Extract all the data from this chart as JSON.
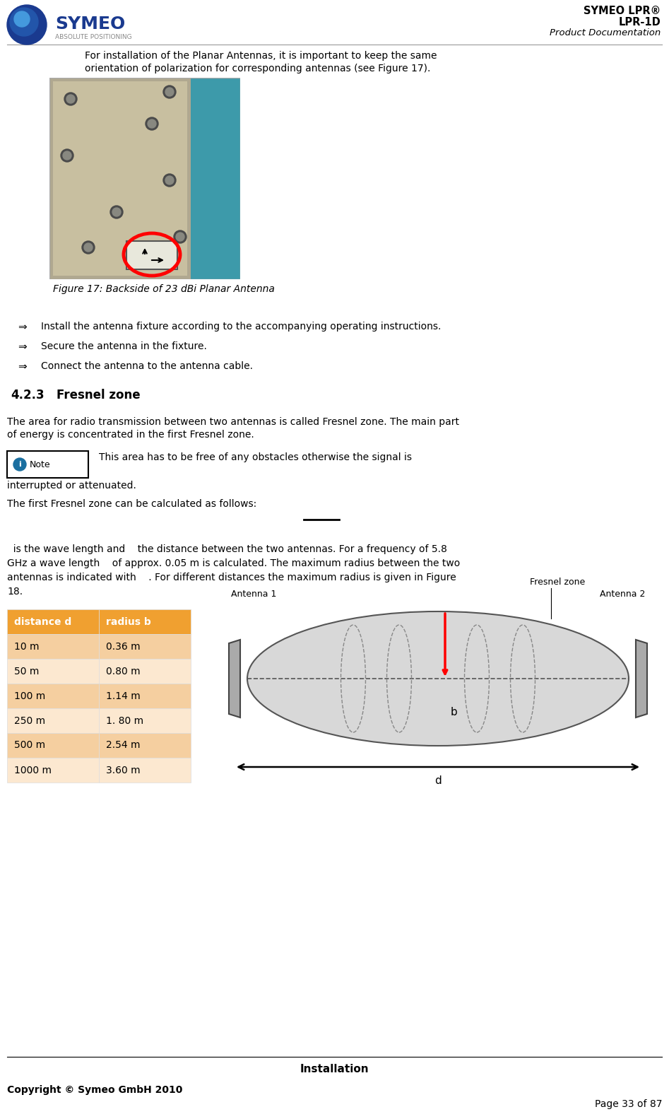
{
  "title_line1": "SYMEO LPR®",
  "title_line2": "LPR-1D",
  "title_line3": "Product Documentation",
  "intro_text_line1": "For installation of the Planar Antennas, it is important to keep the same",
  "intro_text_line2": "orientation of polarization for corresponding antennas (see Figure 17).",
  "figure_caption": "Figure 17: Backside of 23 dBi Planar Antenna",
  "bullet_symbol": "⇒",
  "bullets": [
    "Install the antenna fixture according to the accompanying operating instructions.",
    "Secure the antenna in the fixture.",
    "Connect the antenna to the antenna cable."
  ],
  "section_num": "4.2.3",
  "section_title": "Fresnel zone",
  "para1_line1": "The area for radio transmission between two antennas is called Fresnel zone. The main part",
  "para1_line2": "of energy is concentrated in the first Fresnel zone.",
  "note_label": "Note",
  "note_text_line1": "This area has to be free of any obstacles otherwise the signal is",
  "note_text_line2": "interrupted or attenuated.",
  "para2": "The first Fresnel zone can be calculated as follows:",
  "formula_text_line1": "  is the wave length and    the distance between the two antennas. For a frequency of 5.8",
  "formula_text_line2": "GHz a wave length    of approx. 0.05 m is calculated. The maximum radius between the two",
  "formula_text_line3": "antennas is indicated with    . For different distances the maximum radius is given in Figure",
  "formula_text_line4": "18.",
  "table_headers": [
    "distance d",
    "radius b"
  ],
  "table_data": [
    [
      "10 m",
      "0.36 m"
    ],
    [
      "50 m",
      "0.80 m"
    ],
    [
      "100 m",
      "1.14 m"
    ],
    [
      "250 m",
      "1. 80 m"
    ],
    [
      "500 m",
      "2.54 m"
    ],
    [
      "1000 m",
      "3.60 m"
    ]
  ],
  "table_header_bg": "#f0a030",
  "table_header_text": "#ffffff",
  "table_row_bg_odd": "#f5cfa0",
  "table_row_bg_even": "#fce8d0",
  "diagram_label_ant1": "Antenna 1",
  "diagram_label_ant2": "Antenna 2",
  "diagram_label_fresnel": "Fresnel zone",
  "diagram_label_b": "b",
  "diagram_label_d": "d",
  "footer_section": "Installation",
  "footer_copyright": "Copyright © Symeo GmbH 2010",
  "footer_page": "Page 33 of 87",
  "bg_color": "#ffffff"
}
